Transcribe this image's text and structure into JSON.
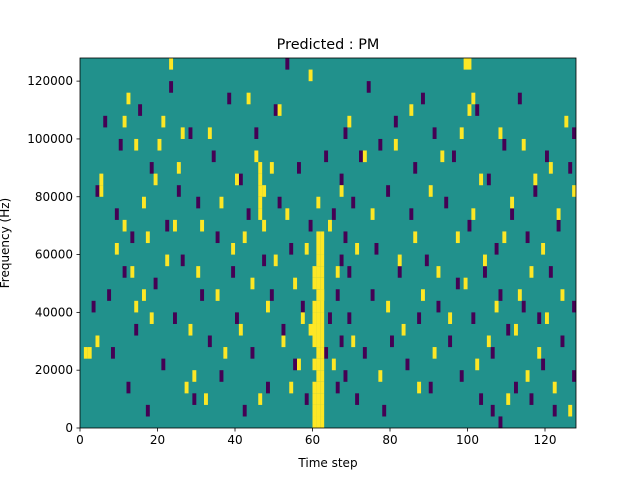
{
  "chart_data": {
    "type": "heatmap",
    "title": "Predicted : PM",
    "xlabel": "Time step",
    "ylabel": "Frequency (Hz)",
    "xlim": [
      0,
      128
    ],
    "ylim": [
      0,
      128000
    ],
    "grid": false,
    "x_ticks": [
      0,
      20,
      40,
      60,
      80,
      100,
      120
    ],
    "y_ticks": [
      0,
      20000,
      40000,
      60000,
      80000,
      100000,
      120000
    ],
    "n_time_steps": 128,
    "n_freq_bins": 32,
    "freq_bin_width_hz": 4000,
    "colors": {
      "background": "#21918c",
      "low": "#440154",
      "high": "#fde725"
    },
    "high_cells": [
      [
        1,
        6
      ],
      [
        2,
        6
      ],
      [
        4,
        7
      ],
      [
        5,
        20
      ],
      [
        5,
        21
      ],
      [
        9,
        15
      ],
      [
        11,
        17
      ],
      [
        11,
        26
      ],
      [
        12,
        28
      ],
      [
        13,
        13
      ],
      [
        14,
        10
      ],
      [
        14,
        24
      ],
      [
        16,
        11
      ],
      [
        16,
        19
      ],
      [
        17,
        16
      ],
      [
        18,
        9
      ],
      [
        19,
        21
      ],
      [
        20,
        24
      ],
      [
        21,
        26
      ],
      [
        22,
        14
      ],
      [
        23,
        31
      ],
      [
        24,
        17
      ],
      [
        25,
        22
      ],
      [
        26,
        25
      ],
      [
        27,
        3
      ],
      [
        28,
        8
      ],
      [
        29,
        4
      ],
      [
        30,
        13
      ],
      [
        31,
        17
      ],
      [
        32,
        2
      ],
      [
        33,
        25
      ],
      [
        35,
        11
      ],
      [
        36,
        19
      ],
      [
        37,
        6
      ],
      [
        39,
        15
      ],
      [
        40,
        21
      ],
      [
        41,
        8
      ],
      [
        42,
        16
      ],
      [
        43,
        28
      ],
      [
        44,
        12
      ],
      [
        45,
        23
      ],
      [
        46,
        2
      ],
      [
        47,
        17
      ],
      [
        48,
        10
      ],
      [
        49,
        22
      ],
      [
        50,
        14
      ],
      [
        51,
        27
      ],
      [
        52,
        7
      ],
      [
        53,
        18
      ],
      [
        54,
        3
      ],
      [
        55,
        12
      ],
      [
        56,
        5
      ],
      [
        57,
        9
      ],
      [
        58,
        15
      ],
      [
        59,
        8
      ],
      [
        59,
        30
      ],
      [
        61,
        2
      ],
      [
        61,
        19
      ],
      [
        62,
        11
      ],
      [
        64,
        17
      ],
      [
        65,
        5
      ],
      [
        66,
        13
      ],
      [
        67,
        20
      ],
      [
        69,
        26
      ],
      [
        70,
        7
      ],
      [
        71,
        15
      ],
      [
        73,
        23
      ],
      [
        75,
        18
      ],
      [
        77,
        4
      ],
      [
        79,
        10
      ],
      [
        81,
        24
      ],
      [
        82,
        14
      ],
      [
        83,
        8
      ],
      [
        85,
        27
      ],
      [
        86,
        16
      ],
      [
        87,
        3
      ],
      [
        88,
        11
      ],
      [
        90,
        20
      ],
      [
        91,
        6
      ],
      [
        92,
        13
      ],
      [
        93,
        23
      ],
      [
        95,
        9
      ],
      [
        97,
        16
      ],
      [
        98,
        25
      ],
      [
        99,
        12
      ],
      [
        101,
        18
      ],
      [
        102,
        5
      ],
      [
        103,
        21
      ],
      [
        104,
        14
      ],
      [
        105,
        7
      ],
      [
        107,
        10
      ],
      [
        108,
        25
      ],
      [
        109,
        16
      ],
      [
        110,
        2
      ],
      [
        111,
        19
      ],
      [
        112,
        8
      ],
      [
        113,
        11
      ],
      [
        114,
        24
      ],
      [
        115,
        4
      ],
      [
        116,
        13
      ],
      [
        117,
        21
      ],
      [
        118,
        6
      ],
      [
        119,
        15
      ],
      [
        120,
        9
      ],
      [
        121,
        22
      ],
      [
        122,
        3
      ],
      [
        123,
        18
      ],
      [
        124,
        11
      ],
      [
        125,
        26
      ],
      [
        126,
        1
      ],
      [
        127,
        20
      ],
      [
        60,
        0
      ],
      [
        61,
        0
      ],
      [
        62,
        0
      ],
      [
        60,
        1
      ],
      [
        61,
        1
      ],
      [
        62,
        1
      ],
      [
        60,
        2
      ],
      [
        62,
        2
      ],
      [
        60,
        3
      ],
      [
        61,
        3
      ],
      [
        62,
        3
      ],
      [
        61,
        4
      ],
      [
        62,
        4
      ],
      [
        60,
        5
      ],
      [
        61,
        5
      ],
      [
        62,
        5
      ],
      [
        61,
        6
      ],
      [
        62,
        6
      ],
      [
        60,
        7
      ],
      [
        61,
        7
      ],
      [
        62,
        7
      ],
      [
        60,
        8
      ],
      [
        61,
        8
      ],
      [
        62,
        8
      ],
      [
        60,
        9
      ],
      [
        61,
        9
      ],
      [
        62,
        9
      ],
      [
        60,
        10
      ],
      [
        61,
        10
      ],
      [
        62,
        10
      ],
      [
        61,
        11
      ],
      [
        62,
        11
      ],
      [
        60,
        12
      ],
      [
        61,
        12
      ],
      [
        62,
        12
      ],
      [
        60,
        13
      ],
      [
        61,
        13
      ],
      [
        62,
        13
      ],
      [
        61,
        14
      ],
      [
        62,
        14
      ],
      [
        61,
        15
      ],
      [
        62,
        15
      ],
      [
        61,
        16
      ],
      [
        62,
        16
      ],
      [
        46,
        18
      ],
      [
        46,
        19
      ],
      [
        46,
        20
      ],
      [
        46,
        21
      ],
      [
        46,
        22
      ],
      [
        47,
        20
      ],
      [
        99,
        31
      ],
      [
        100,
        31
      ],
      [
        101,
        28
      ],
      [
        100,
        27
      ]
    ],
    "low_cells": [
      [
        3,
        10
      ],
      [
        4,
        20
      ],
      [
        6,
        26
      ],
      [
        7,
        11
      ],
      [
        8,
        6
      ],
      [
        9,
        18
      ],
      [
        10,
        24
      ],
      [
        11,
        13
      ],
      [
        12,
        3
      ],
      [
        13,
        16
      ],
      [
        14,
        8
      ],
      [
        15,
        27
      ],
      [
        17,
        1
      ],
      [
        18,
        22
      ],
      [
        19,
        12
      ],
      [
        21,
        5
      ],
      [
        22,
        17
      ],
      [
        23,
        29
      ],
      [
        24,
        9
      ],
      [
        25,
        20
      ],
      [
        26,
        14
      ],
      [
        28,
        25
      ],
      [
        29,
        2
      ],
      [
        30,
        19
      ],
      [
        31,
        11
      ],
      [
        33,
        7
      ],
      [
        34,
        23
      ],
      [
        35,
        16
      ],
      [
        36,
        4
      ],
      [
        38,
        28
      ],
      [
        39,
        13
      ],
      [
        40,
        9
      ],
      [
        41,
        21
      ],
      [
        42,
        1
      ],
      [
        43,
        18
      ],
      [
        44,
        6
      ],
      [
        45,
        25
      ],
      [
        47,
        14
      ],
      [
        48,
        3
      ],
      [
        49,
        11
      ],
      [
        50,
        27
      ],
      [
        51,
        19
      ],
      [
        52,
        8
      ],
      [
        53,
        31
      ],
      [
        54,
        15
      ],
      [
        55,
        5
      ],
      [
        56,
        22
      ],
      [
        57,
        10
      ],
      [
        58,
        2
      ],
      [
        59,
        17
      ],
      [
        63,
        6
      ],
      [
        63,
        23
      ],
      [
        64,
        9
      ],
      [
        65,
        18
      ],
      [
        66,
        3
      ],
      [
        66,
        11
      ],
      [
        67,
        7
      ],
      [
        67,
        14
      ],
      [
        67,
        21
      ],
      [
        68,
        4
      ],
      [
        68,
        16
      ],
      [
        68,
        25
      ],
      [
        69,
        9
      ],
      [
        69,
        13
      ],
      [
        70,
        19
      ],
      [
        71,
        2
      ],
      [
        72,
        23
      ],
      [
        73,
        6
      ],
      [
        74,
        29
      ],
      [
        75,
        11
      ],
      [
        76,
        15
      ],
      [
        77,
        24
      ],
      [
        78,
        1
      ],
      [
        79,
        20
      ],
      [
        80,
        7
      ],
      [
        81,
        26
      ],
      [
        82,
        13
      ],
      [
        84,
        5
      ],
      [
        85,
        18
      ],
      [
        86,
        22
      ],
      [
        87,
        9
      ],
      [
        88,
        28
      ],
      [
        89,
        14
      ],
      [
        90,
        3
      ],
      [
        91,
        25
      ],
      [
        92,
        10
      ],
      [
        94,
        19
      ],
      [
        95,
        7
      ],
      [
        96,
        23
      ],
      [
        97,
        12
      ],
      [
        98,
        4
      ],
      [
        100,
        17
      ],
      [
        101,
        9
      ],
      [
        102,
        27
      ],
      [
        103,
        2
      ],
      [
        104,
        13
      ],
      [
        105,
        21
      ],
      [
        106,
        6
      ],
      [
        106,
        1
      ],
      [
        107,
        15
      ],
      [
        108,
        0
      ],
      [
        108,
        11
      ],
      [
        109,
        24
      ],
      [
        110,
        8
      ],
      [
        111,
        18
      ],
      [
        112,
        3
      ],
      [
        113,
        28
      ],
      [
        114,
        10
      ],
      [
        115,
        16
      ],
      [
        116,
        2
      ],
      [
        117,
        20
      ],
      [
        118,
        9
      ],
      [
        119,
        5
      ],
      [
        120,
        23
      ],
      [
        121,
        13
      ],
      [
        122,
        1
      ],
      [
        123,
        17
      ],
      [
        124,
        7
      ],
      [
        126,
        22
      ],
      [
        127,
        10
      ],
      [
        127,
        25
      ],
      [
        127,
        4
      ]
    ]
  }
}
